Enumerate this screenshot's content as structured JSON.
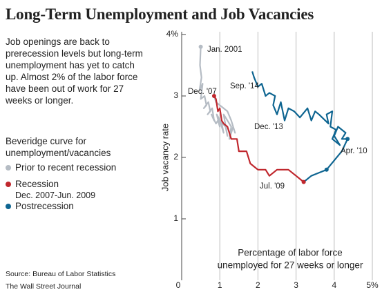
{
  "chart_data": {
    "type": "line",
    "title": "Long-Term Unemployment and Job Vacancies",
    "description": "Job openings are back to prerecession levels but long-term unemployment has yet to catch up. Almost 2% of the labor force have been out of work for 27 weeks or longer.",
    "legend_title": "Beveridge curve for unemployment/vacancies",
    "x_label": [
      "Percentage of labor force",
      "unemployed for 27 weeks or longer"
    ],
    "y_label": "Job vacancy rate",
    "xlim": [
      0,
      5
    ],
    "ylim": [
      0,
      4
    ],
    "xticks": [
      0,
      1,
      2,
      3,
      4,
      {
        "value": 5,
        "label": "5%"
      }
    ],
    "yticks": [
      1,
      2,
      3,
      {
        "value": 4,
        "label": "4%"
      }
    ],
    "grid": true,
    "series": [
      {
        "name": "Prior to recent recession",
        "color": "#b5bcc4",
        "x": [
          0.5,
          0.48,
          0.52,
          0.47,
          0.55,
          0.5,
          0.6,
          0.65,
          0.58,
          0.7,
          0.75,
          0.68,
          0.8,
          0.85,
          0.78,
          0.9,
          0.95,
          1.0,
          0.92,
          1.05,
          1.1,
          1.0,
          1.15,
          1.2,
          1.1,
          1.3,
          1.25,
          1.35,
          1.4,
          1.3,
          1.2,
          1.0,
          0.9,
          0.85
        ],
        "values": [
          3.8,
          3.5,
          3.3,
          3.1,
          3.2,
          2.95,
          3.0,
          2.85,
          2.8,
          2.9,
          2.75,
          2.7,
          2.8,
          2.6,
          2.7,
          2.55,
          2.6,
          2.5,
          2.7,
          2.55,
          2.4,
          2.6,
          2.5,
          2.35,
          2.7,
          2.5,
          2.3,
          2.5,
          2.4,
          2.6,
          2.75,
          2.85,
          2.9,
          3.0
        ]
      },
      {
        "name": "Recession",
        "period": "Dec. 2007-Jun. 2009",
        "color": "#c0272d",
        "x": [
          0.85,
          0.9,
          0.95,
          1.0,
          1.05,
          1.1,
          1.2,
          1.3,
          1.45,
          1.5,
          1.7,
          1.8,
          1.9,
          2.0,
          2.2,
          2.3,
          2.5,
          2.8,
          3.0,
          3.2
        ],
        "values": [
          3.0,
          2.95,
          2.75,
          2.8,
          2.6,
          2.55,
          2.5,
          2.3,
          2.3,
          2.1,
          2.1,
          1.9,
          1.85,
          1.8,
          1.8,
          1.7,
          1.8,
          1.8,
          1.7,
          1.6
        ]
      },
      {
        "name": "Postrecession",
        "color": "#0e6591",
        "x": [
          3.2,
          3.4,
          3.6,
          3.8,
          4.0,
          4.2,
          4.35,
          4.2,
          4.3,
          4.1,
          4.0,
          4.15,
          3.95,
          4.05,
          3.9,
          3.95,
          3.8,
          3.85,
          3.6,
          3.5,
          3.4,
          3.3,
          3.1,
          2.95,
          2.8,
          2.7,
          2.6,
          2.5,
          2.4,
          2.45,
          2.3,
          2.2,
          2.1,
          2.0,
          1.9,
          1.85
        ],
        "values": [
          1.6,
          1.7,
          1.75,
          1.8,
          1.95,
          2.1,
          2.3,
          2.3,
          2.4,
          2.5,
          2.35,
          2.2,
          2.3,
          2.45,
          2.5,
          2.75,
          2.7,
          2.55,
          2.7,
          2.75,
          2.6,
          2.8,
          2.65,
          2.75,
          2.8,
          2.6,
          2.9,
          2.7,
          2.85,
          3.0,
          3.05,
          3.0,
          3.2,
          3.15,
          3.3,
          3.4
        ]
      }
    ],
    "annotations": [
      "Jan. 2001",
      "Dec. '07",
      "Sep. '14",
      "Dec. '13",
      "Apr. '10",
      "Jul. '09"
    ],
    "source": [
      "Source: Bureau of Labor Statistics",
      "The Wall Street Journal"
    ]
  }
}
